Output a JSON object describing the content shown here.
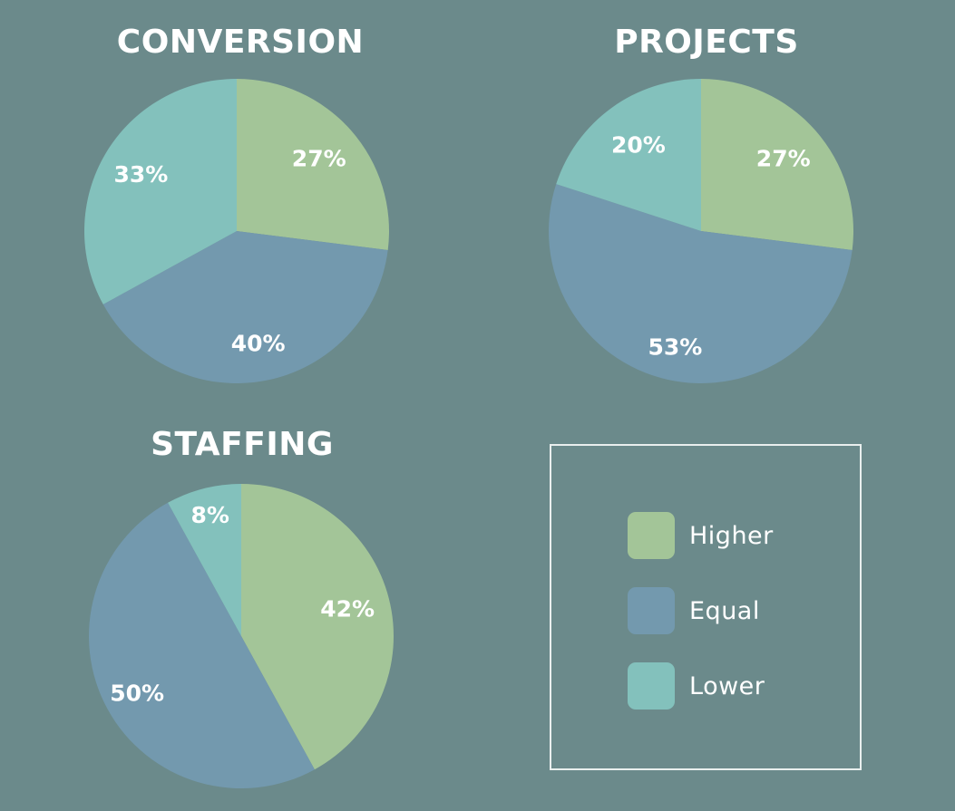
{
  "colors": {
    "background": "#6b8a8b",
    "higher": "#a3c598",
    "equal": "#7399ae",
    "lower": "#83c1bc",
    "text": "#ffffff"
  },
  "legend": [
    {
      "key": "higher",
      "label": "Higher"
    },
    {
      "key": "equal",
      "label": "Equal"
    },
    {
      "key": "lower",
      "label": "Lower"
    }
  ],
  "chart_data": [
    {
      "type": "pie",
      "title": "CONVERSION",
      "slices": [
        {
          "key": "higher",
          "label": "Higher",
          "value": 27,
          "text": "27%"
        },
        {
          "key": "equal",
          "label": "Equal",
          "value": 40,
          "text": "40%"
        },
        {
          "key": "lower",
          "label": "Lower",
          "value": 33,
          "text": "33%"
        }
      ]
    },
    {
      "type": "pie",
      "title": "PROJECTS",
      "slices": [
        {
          "key": "higher",
          "label": "Higher",
          "value": 27,
          "text": "27%"
        },
        {
          "key": "equal",
          "label": "Equal",
          "value": 53,
          "text": "53%"
        },
        {
          "key": "lower",
          "label": "Lower",
          "value": 20,
          "text": "20%"
        }
      ]
    },
    {
      "type": "pie",
      "title": "STAFFING",
      "slices": [
        {
          "key": "higher",
          "label": "Higher",
          "value": 42,
          "text": "42%"
        },
        {
          "key": "equal",
          "label": "Equal",
          "value": 50,
          "text": "50%"
        },
        {
          "key": "lower",
          "label": "Lower",
          "value": 8,
          "text": "8%"
        }
      ]
    }
  ]
}
